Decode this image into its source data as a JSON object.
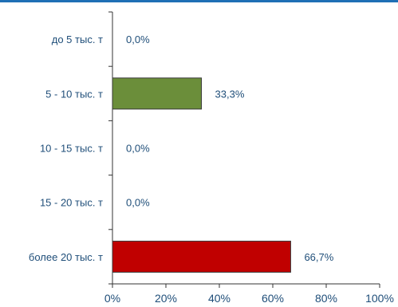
{
  "chart_data": {
    "type": "bar",
    "orientation": "horizontal",
    "categories": [
      "до 5 тыс. т",
      "5 - 10 тыс. т",
      "10 - 15 тыс. т",
      "15 - 20 тыс. т",
      "более 20 тыс. т"
    ],
    "values": [
      0.0,
      33.3,
      0.0,
      0.0,
      66.7
    ],
    "data_labels": [
      "0,0%",
      "33,3%",
      "0,0%",
      "0,0%",
      "66,7%"
    ],
    "bar_colors": [
      "#6b8e3a",
      "#6b8e3a",
      "#6b8e3a",
      "#6b8e3a",
      "#c00000"
    ],
    "xlim": [
      0,
      100
    ],
    "x_ticks": [
      0,
      20,
      40,
      60,
      80,
      100
    ],
    "x_tick_labels": [
      "0%",
      "20%",
      "40%",
      "60%",
      "80%",
      "100%"
    ],
    "title": "",
    "xlabel": "",
    "ylabel": "",
    "grid": false,
    "legend": "none"
  },
  "colors": {
    "accent_rule": "#1f6fb5",
    "text": "#1f4e79",
    "axis": "#333333"
  }
}
